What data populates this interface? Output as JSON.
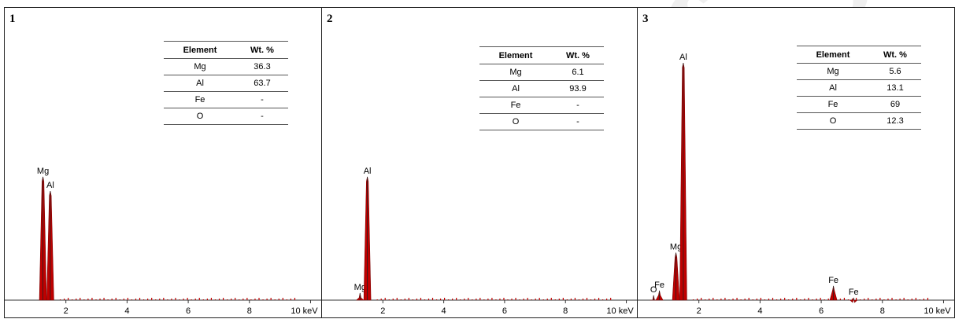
{
  "watermark": "of SID",
  "chart_data": [
    {
      "type": "spectrum",
      "panel_label": "1",
      "xlabel": "keV",
      "xlim": [
        0,
        10.4
      ],
      "ylim": [
        0,
        1
      ],
      "x_ticks": [
        {
          "v": 2,
          "label": "2"
        },
        {
          "v": 4,
          "label": "4"
        },
        {
          "v": 6,
          "label": "6"
        },
        {
          "v": 8,
          "label": "8"
        },
        {
          "v": 10,
          "label": "10 keV"
        }
      ],
      "peaks": [
        {
          "element": "Mg",
          "x": 1.25,
          "y": 0.52
        },
        {
          "element": "Al",
          "x": 1.49,
          "y": 0.46
        }
      ],
      "table": {
        "headers": [
          "Element",
          "Wt. %"
        ],
        "rows": [
          [
            "Mg",
            "36.3"
          ],
          [
            "Al",
            "63.7"
          ],
          [
            "Fe",
            "-"
          ],
          [
            "O",
            "-"
          ]
        ]
      }
    },
    {
      "type": "spectrum",
      "panel_label": "2",
      "xlabel": "keV",
      "xlim": [
        0,
        10.4
      ],
      "ylim": [
        0,
        1
      ],
      "x_ticks": [
        {
          "v": 2,
          "label": "2"
        },
        {
          "v": 4,
          "label": "4"
        },
        {
          "v": 6,
          "label": "6"
        },
        {
          "v": 8,
          "label": "8"
        },
        {
          "v": 10,
          "label": "10 keV"
        }
      ],
      "peaks": [
        {
          "element": "Mg",
          "x": 1.25,
          "y": 0.03
        },
        {
          "element": "Al",
          "x": 1.49,
          "y": 0.52
        }
      ],
      "table": {
        "headers": [
          "Element",
          "Wt. %"
        ],
        "rows": [
          [
            "Mg",
            "6.1"
          ],
          [
            "Al",
            "93.9"
          ],
          [
            "Fe",
            "-"
          ],
          [
            "O",
            "-"
          ]
        ]
      }
    },
    {
      "type": "spectrum",
      "panel_label": "3",
      "xlabel": "keV",
      "xlim": [
        0,
        10.4
      ],
      "ylim": [
        0,
        1
      ],
      "x_ticks": [
        {
          "v": 2,
          "label": "2"
        },
        {
          "v": 4,
          "label": "4"
        },
        {
          "v": 6,
          "label": "6"
        },
        {
          "v": 8,
          "label": "8"
        },
        {
          "v": 10,
          "label": "10 keV"
        }
      ],
      "peaks": [
        {
          "element": "O",
          "x": 0.52,
          "y": 0.02
        },
        {
          "element": "Fe",
          "x": 0.71,
          "y": 0.04
        },
        {
          "element": "Mg",
          "x": 1.25,
          "y": 0.2
        },
        {
          "element": "Al",
          "x": 1.49,
          "y": 1.0
        },
        {
          "element": "Fe",
          "x": 6.4,
          "y": 0.06
        },
        {
          "element": "Fe",
          "x": 7.06,
          "y": 0.01
        }
      ],
      "table": {
        "headers": [
          "Element",
          "Wt. %"
        ],
        "rows": [
          [
            "Mg",
            "5.6"
          ],
          [
            "Al",
            "13.1"
          ],
          [
            "Fe",
            "69"
          ],
          [
            "O",
            "12.3"
          ]
        ]
      }
    }
  ]
}
